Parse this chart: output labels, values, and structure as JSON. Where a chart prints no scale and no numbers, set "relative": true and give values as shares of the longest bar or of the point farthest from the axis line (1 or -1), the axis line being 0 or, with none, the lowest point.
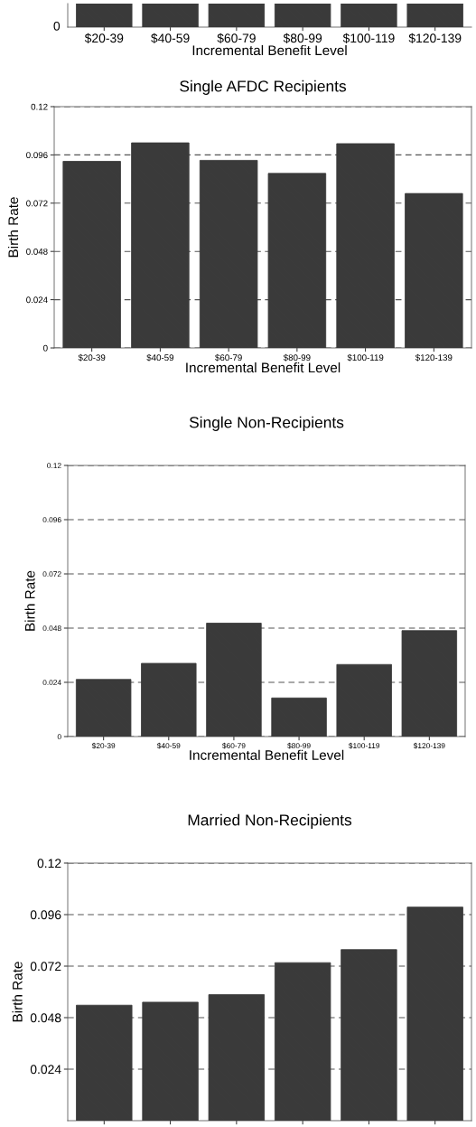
{
  "chart_data": [
    {
      "type": "bar",
      "relative": true,
      "categories": [
        "$20-39",
        "$40-59",
        "$60-79",
        "$80-99",
        "$100-119",
        "$120-139"
      ],
      "values": [
        1,
        1,
        1,
        1,
        1,
        1
      ],
      "color": "#3a3a3a",
      "xlabel": "Incremental Benefit Level",
      "annotations": [
        "0"
      ]
    },
    {
      "type": "bar",
      "title": "Single AFDC Recipients",
      "categories": [
        "$20-39",
        "$40-59",
        "$60-79",
        "$80-99",
        "$100-119",
        "$120-139"
      ],
      "values": [
        0.0928,
        0.102,
        0.0933,
        0.0868,
        0.1016,
        0.0768
      ],
      "color": "#3a3a3a",
      "xlabel": "Incremental Benefit Level",
      "ylabel": "Birth Rate",
      "ylim": [
        0,
        0.12
      ],
      "yticks": [
        0,
        0.024,
        0.048,
        0.072,
        0.096,
        0.12
      ],
      "grid": "y"
    },
    {
      "type": "bar",
      "title": "Single Non-Recipients",
      "categories": [
        "$20-39",
        "$40-59",
        "$60-79",
        "$80-99",
        "$100-119",
        "$120-139"
      ],
      "values": [
        0.0253,
        0.0324,
        0.0502,
        0.0171,
        0.0319,
        0.0469
      ],
      "color": "#3a3a3a",
      "xlabel": "Incremental Benefit Level",
      "ylabel": "Birth Rate",
      "ylim": [
        0,
        0.12
      ],
      "yticks": [
        0,
        0.024,
        0.048,
        0.072,
        0.096,
        0.12
      ],
      "grid": "y"
    },
    {
      "type": "bar",
      "title": "Married Non-Recipients",
      "categories": [
        null,
        null,
        null,
        null,
        null,
        null
      ],
      "values": [
        0.0538,
        0.0552,
        0.0587,
        0.0736,
        0.0797,
        0.0995
      ],
      "color": "#3a3a3a",
      "ylabel": "Birth Rate",
      "ylim": [
        0,
        0.12
      ],
      "yticks": [
        0.024,
        0.048,
        0.072,
        0.096,
        0.12
      ],
      "grid": "y"
    }
  ]
}
